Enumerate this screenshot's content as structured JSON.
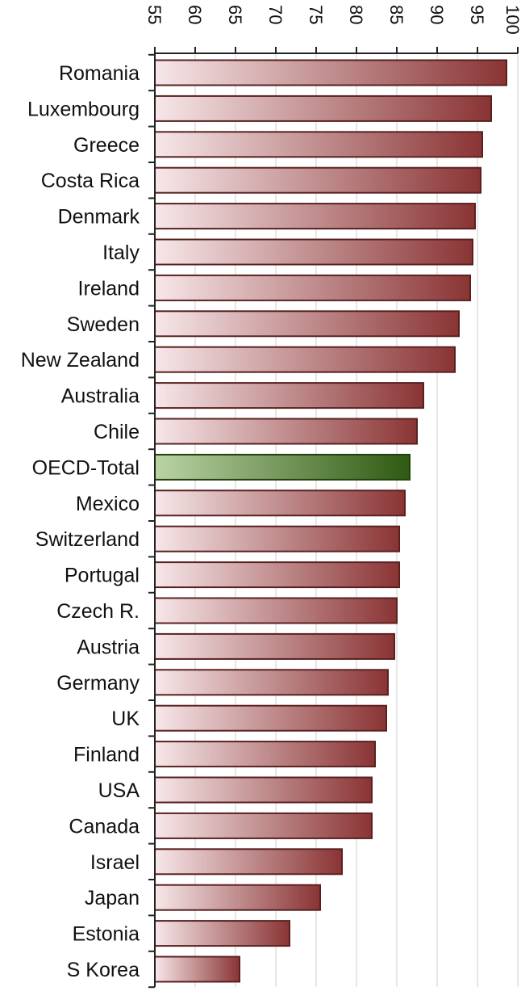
{
  "chart_data": {
    "type": "bar",
    "orientation": "horizontal",
    "categories": [
      "Romania",
      "Luxembourg",
      "Greece",
      "Costa Rica",
      "Denmark",
      "Italy",
      "Ireland",
      "Sweden",
      "New Zealand",
      "Australia",
      "Chile",
      "OECD-Total",
      "Mexico",
      "Switzerland",
      "Portugal",
      "Czech R.",
      "Austria",
      "Germany",
      "UK",
      "Finland",
      "USA",
      "Canada",
      "Israel",
      "Japan",
      "Estonia",
      "S Korea"
    ],
    "values": [
      98.6,
      96.7,
      95.6,
      95.4,
      94.7,
      94.4,
      94.1,
      92.7,
      92.2,
      88.3,
      87.5,
      86.6,
      86.0,
      85.3,
      85.3,
      85.0,
      84.7,
      83.9,
      83.7,
      82.3,
      81.9,
      81.9,
      78.2,
      75.5,
      71.7,
      65.5
    ],
    "highlight": "OECD-Total",
    "xlim": [
      55,
      100
    ],
    "ticks": [
      55,
      60,
      65,
      70,
      75,
      80,
      85,
      90,
      95,
      100
    ],
    "tick_labels": [
      "55",
      "60",
      "65",
      "70",
      "75",
      "80",
      "85",
      "90",
      "95",
      "100"
    ],
    "tick_position": "top",
    "tick_rotation": 90,
    "grid": true,
    "title": "",
    "xlabel": "",
    "ylabel": "",
    "colors": {
      "bar_start": "#f7e7e9",
      "bar_end": "#8a3434",
      "bar_stroke": "#5a2020",
      "highlight_start": "#bad4a4",
      "highlight_end": "#2f5a12",
      "highlight_stroke": "#243f10",
      "grid": "#cfcfcf",
      "axis": "#222222"
    }
  }
}
